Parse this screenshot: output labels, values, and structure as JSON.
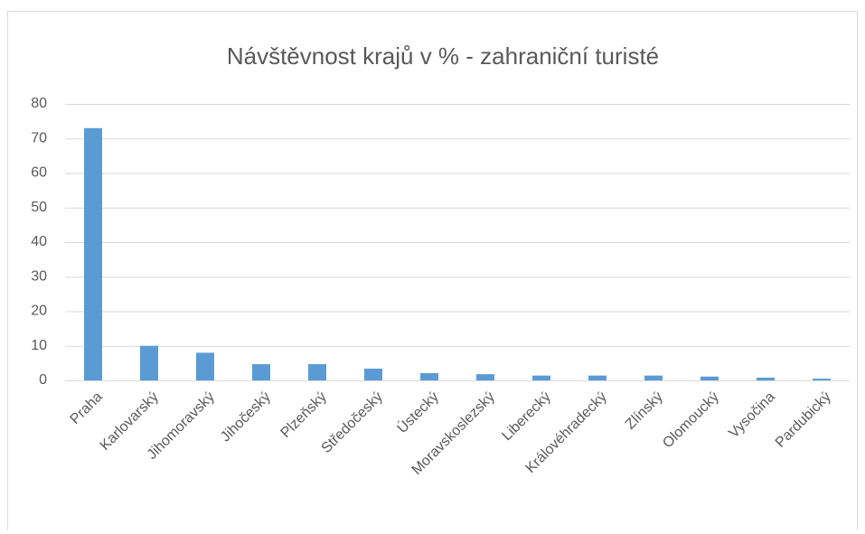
{
  "chart_data": {
    "type": "bar",
    "title": "Návštěvnost krajů v % - zahraniční turisté",
    "categories": [
      "Praha",
      "Karlovarský",
      "Jihomoravský",
      "Jihočeský",
      "Plzeňský",
      "Středočeský",
      "Ústecký",
      "Moravskoslezský",
      "Liberecký",
      "Královéhradecký",
      "Zlínský",
      "Olomoucký",
      "Vysočina",
      "Pardubický"
    ],
    "values": [
      73,
      10,
      8,
      4.7,
      4.7,
      3.4,
      2.1,
      1.8,
      1.4,
      1.4,
      1.4,
      1.1,
      0.8,
      0.5
    ],
    "color": "#5b9bd5",
    "ylim": [
      0,
      80
    ],
    "yticks": [
      0,
      10,
      20,
      30,
      40,
      50,
      60,
      70,
      80
    ],
    "grid": true
  }
}
